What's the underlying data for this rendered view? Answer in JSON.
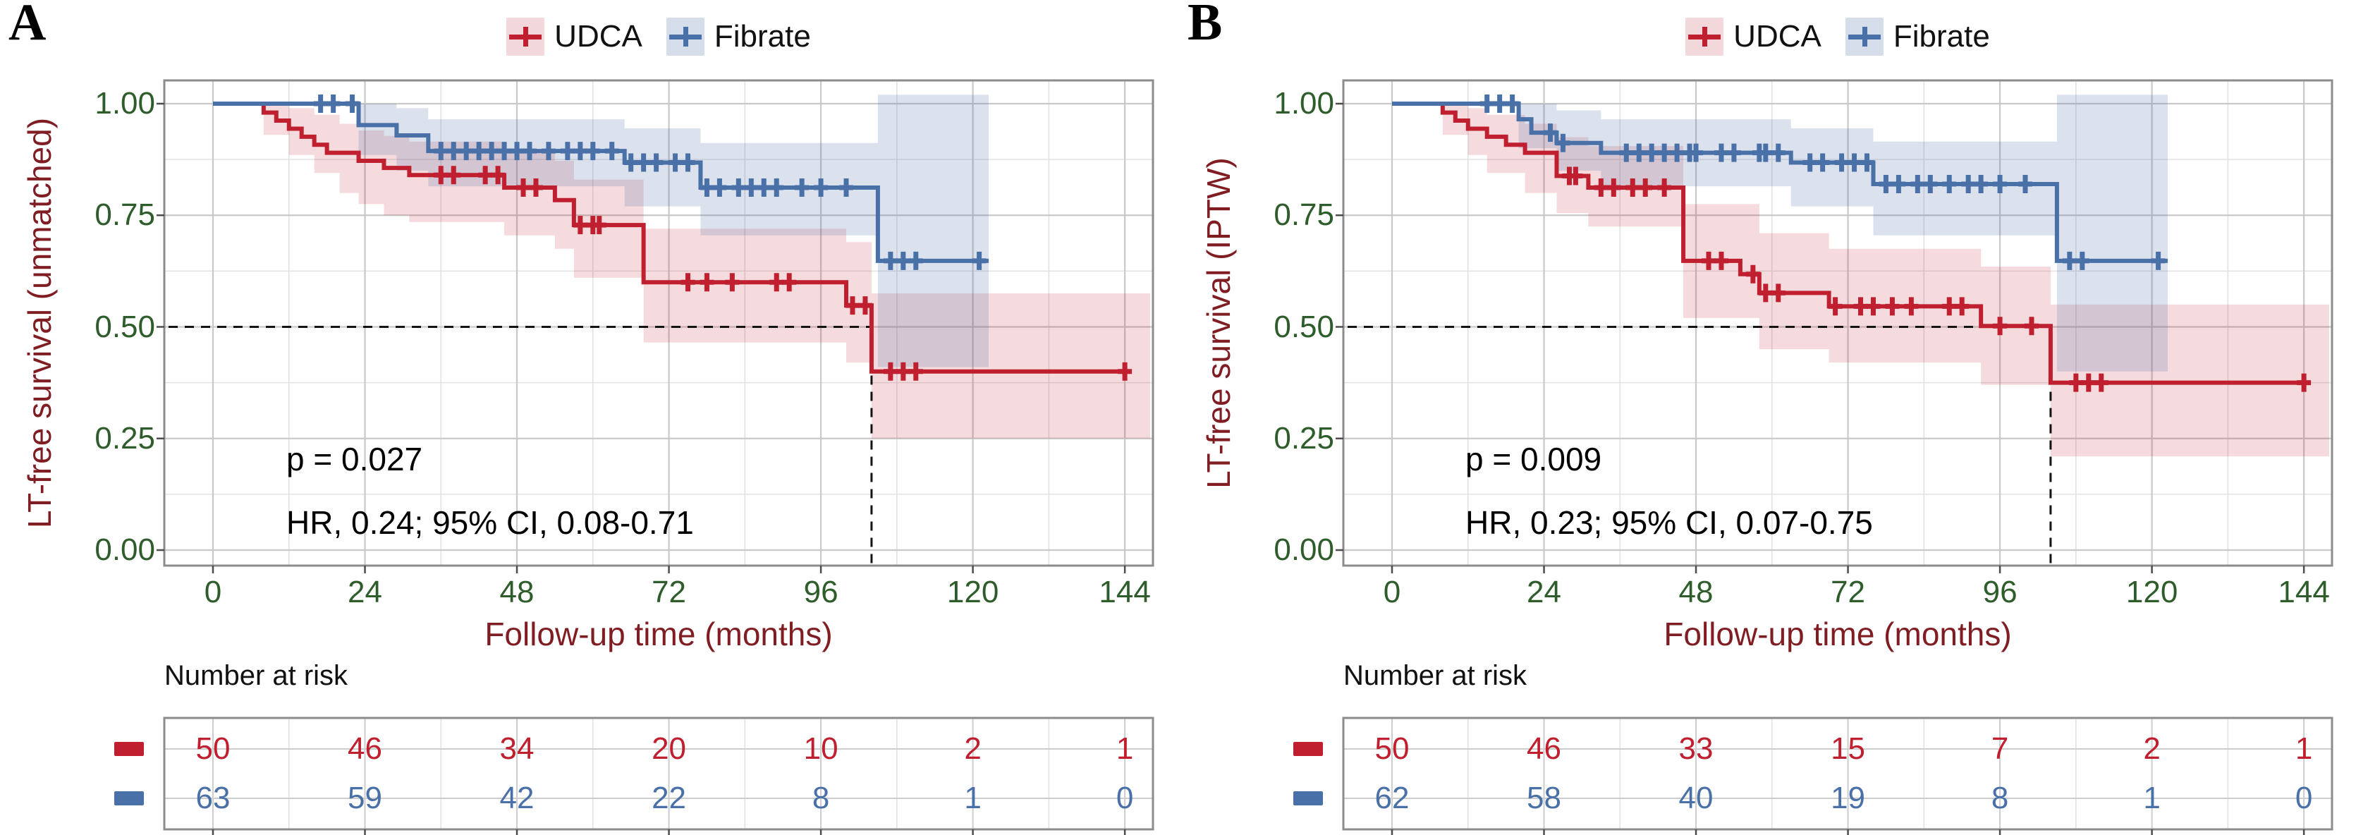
{
  "colors": {
    "udca": "#bf1f2e",
    "fibrate": "#4a70a8",
    "udca_ci": "rgba(191,31,46,0.16)",
    "fibrate_ci": "rgba(74,112,168,0.20)",
    "udca_key_bg": "#f2d8da",
    "fibrate_key_bg": "#d6deeb",
    "tick_green": "#2e5d2b",
    "axis_maroon": "#7f1d23"
  },
  "legend": {
    "items": [
      {
        "label": "UDCA",
        "color_key": "udca"
      },
      {
        "label": "Fibrate",
        "color_key": "fibrate"
      }
    ]
  },
  "chart_data": [
    {
      "type": "line",
      "panel_label": "A",
      "y_title": "LT-free survival (unmatched)",
      "x_title": "Follow-up time (months)",
      "x_ticks": [
        0,
        24,
        48,
        72,
        96,
        120,
        144
      ],
      "y_ticks": [
        "1.00",
        "0.75",
        "0.50",
        "0.25",
        "0.00"
      ],
      "y_tick_values": [
        1,
        0.75,
        0.5,
        0.25,
        0
      ],
      "xlim": [
        0,
        148
      ],
      "ylim": [
        0,
        1.05
      ],
      "grid": true,
      "legend_position": "top",
      "annotations": {
        "p": "p = 0.027",
        "hr": "HR, 0.24; 95% CI, 0.08-0.71"
      },
      "median_dashed": {
        "survival": 0.5,
        "month": 104
      },
      "risk_table": {
        "title": "Number at risk",
        "rows": [
          {
            "name": "UDCA",
            "values": [
              50,
              46,
              34,
              20,
              10,
              2,
              1
            ]
          },
          {
            "name": "Fibrate",
            "values": [
              63,
              59,
              42,
              22,
              8,
              1,
              0
            ]
          }
        ]
      },
      "series": [
        {
          "name": "UDCA",
          "color": "#bf1f2e",
          "ci_fill": "rgba(191,31,46,0.16)",
          "steps": [
            [
              0,
              1
            ],
            [
              8,
              0.98
            ],
            [
              10,
              0.962
            ],
            [
              12,
              0.944
            ],
            [
              14,
              0.926
            ],
            [
              16,
              0.908
            ],
            [
              18,
              0.89
            ],
            [
              23,
              0.872
            ],
            [
              27,
              0.856
            ],
            [
              31,
              0.84
            ],
            [
              46,
              0.812
            ],
            [
              54,
              0.784
            ],
            [
              57,
              0.728
            ],
            [
              68,
              0.6
            ],
            [
              100,
              0.548
            ],
            [
              104,
              0.4
            ]
          ],
          "end_month": 145,
          "censor_months": [
            36,
            38,
            43,
            45,
            49,
            51,
            58,
            60,
            61,
            75,
            78,
            82,
            89,
            91,
            101,
            103,
            107,
            109,
            111,
            144
          ],
          "ci": [
            [
              0,
              1,
              1
            ],
            [
              8,
              0.93,
              1
            ],
            [
              12,
              0.885,
              0.99
            ],
            [
              16,
              0.845,
              0.975
            ],
            [
              20,
              0.8,
              0.955
            ],
            [
              23,
              0.775,
              0.94
            ],
            [
              27,
              0.75,
              0.928
            ],
            [
              31,
              0.735,
              0.915
            ],
            [
              46,
              0.705,
              0.895
            ],
            [
              54,
              0.675,
              0.872
            ],
            [
              57,
              0.61,
              0.83
            ],
            [
              68,
              0.465,
              0.72
            ],
            [
              100,
              0.42,
              0.69
            ],
            [
              104,
              0.25,
              0.575
            ]
          ],
          "ci_end_month": 148
        },
        {
          "name": "Fibrate",
          "color": "#4a70a8",
          "ci_fill": "rgba(74,112,168,0.20)",
          "steps": [
            [
              0,
              1
            ],
            [
              23,
              0.952
            ],
            [
              29,
              0.929
            ],
            [
              34,
              0.894
            ],
            [
              65,
              0.868
            ],
            [
              77,
              0.812
            ],
            [
              105,
              0.648
            ]
          ],
          "end_month": 122.5,
          "censor_months": [
            17,
            19,
            22,
            36,
            38,
            40,
            42,
            44,
            46,
            48,
            50,
            53,
            56,
            58,
            60,
            63,
            66,
            68,
            70,
            73,
            75,
            78,
            80,
            83,
            85,
            87,
            89,
            93,
            96,
            100,
            107,
            109,
            111,
            121
          ],
          "ci": [
            [
              0,
              1,
              1
            ],
            [
              23,
              0.885,
              1
            ],
            [
              29,
              0.85,
              0.99
            ],
            [
              34,
              0.815,
              0.965
            ],
            [
              65,
              0.77,
              0.945
            ],
            [
              77,
              0.705,
              0.912
            ],
            [
              105,
              0.41,
              1.02
            ]
          ],
          "ci_end_month": 122.5
        }
      ]
    },
    {
      "type": "line",
      "panel_label": "B",
      "y_title": "LT-free survival (IPTW)",
      "x_title": "Follow-up time (months)",
      "x_ticks": [
        0,
        24,
        48,
        72,
        96,
        120,
        144
      ],
      "y_ticks": [
        "1.00",
        "0.75",
        "0.50",
        "0.25",
        "0.00"
      ],
      "y_tick_values": [
        1,
        0.75,
        0.5,
        0.25,
        0
      ],
      "xlim": [
        0,
        148
      ],
      "ylim": [
        0,
        1.05
      ],
      "grid": true,
      "legend_position": "top",
      "annotations": {
        "p": "p = 0.009",
        "hr": "HR, 0.23; 95% CI, 0.07-0.75"
      },
      "median_dashed": {
        "survival": 0.5,
        "month": 104
      },
      "risk_table": {
        "title": "Number at risk",
        "rows": [
          {
            "name": "UDCA",
            "values": [
              50,
              46,
              33,
              15,
              7,
              2,
              1
            ]
          },
          {
            "name": "Fibrate",
            "values": [
              62,
              58,
              40,
              19,
              8,
              1,
              0
            ]
          }
        ]
      },
      "series": [
        {
          "name": "UDCA",
          "color": "#bf1f2e",
          "ci_fill": "rgba(191,31,46,0.16)",
          "steps": [
            [
              0,
              1
            ],
            [
              8,
              0.98
            ],
            [
              10,
              0.962
            ],
            [
              12,
              0.944
            ],
            [
              15,
              0.926
            ],
            [
              18,
              0.908
            ],
            [
              21,
              0.89
            ],
            [
              26,
              0.838
            ],
            [
              31,
              0.812
            ],
            [
              46,
              0.648
            ],
            [
              55,
              0.618
            ],
            [
              58,
              0.576
            ],
            [
              69,
              0.546
            ],
            [
              93,
              0.502
            ],
            [
              104,
              0.375
            ]
          ],
          "end_month": 145,
          "censor_months": [
            28,
            29,
            33,
            35,
            38,
            40,
            43,
            50,
            52,
            57,
            59,
            61,
            70,
            74,
            76,
            79,
            82,
            88,
            90,
            96,
            101,
            108,
            110,
            112,
            144
          ],
          "ci": [
            [
              0,
              1,
              1
            ],
            [
              8,
              0.93,
              1
            ],
            [
              12,
              0.885,
              0.99
            ],
            [
              15,
              0.845,
              0.975
            ],
            [
              21,
              0.8,
              0.955
            ],
            [
              26,
              0.755,
              0.925
            ],
            [
              31,
              0.725,
              0.905
            ],
            [
              46,
              0.52,
              0.775
            ],
            [
              58,
              0.45,
              0.71
            ],
            [
              69,
              0.42,
              0.675
            ],
            [
              93,
              0.37,
              0.635
            ],
            [
              104,
              0.21,
              0.55
            ]
          ],
          "ci_end_month": 148
        },
        {
          "name": "Fibrate",
          "color": "#4a70a8",
          "ci_fill": "rgba(74,112,168,0.20)",
          "steps": [
            [
              0,
              1
            ],
            [
              20,
              0.965
            ],
            [
              22,
              0.935
            ],
            [
              26,
              0.912
            ],
            [
              33,
              0.89
            ],
            [
              63,
              0.868
            ],
            [
              76,
              0.82
            ],
            [
              105,
              0.648
            ]
          ],
          "end_month": 122.5,
          "censor_months": [
            15,
            17,
            19,
            25,
            27,
            37,
            39,
            41,
            43,
            45,
            47,
            48,
            52,
            54,
            58,
            59,
            61,
            66,
            68,
            71,
            73,
            75,
            78,
            80,
            83,
            85,
            88,
            91,
            93,
            96,
            100,
            107,
            109,
            121
          ],
          "ci": [
            [
              0,
              1,
              1
            ],
            [
              20,
              0.9,
              1
            ],
            [
              26,
              0.85,
              0.985
            ],
            [
              33,
              0.815,
              0.965
            ],
            [
              63,
              0.77,
              0.945
            ],
            [
              76,
              0.705,
              0.915
            ],
            [
              105,
              0.4,
              1.02
            ]
          ],
          "ci_end_month": 122.5
        }
      ]
    }
  ]
}
